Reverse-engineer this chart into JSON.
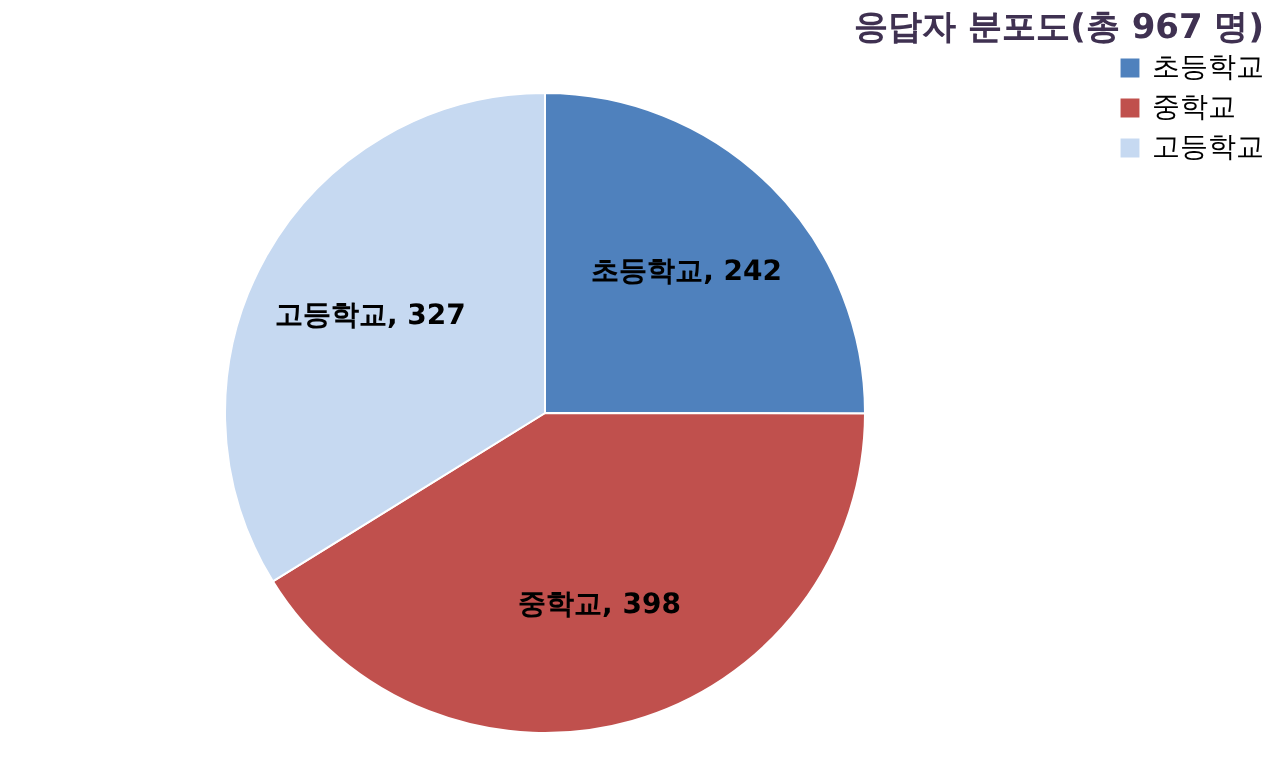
{
  "chart_data": {
    "type": "pie",
    "title": "응답자 분포도(총 967 명)",
    "categories": [
      "초등학교",
      "중학교",
      "고등학교"
    ],
    "values": [
      242,
      398,
      327
    ],
    "colors": [
      "#4f81bd",
      "#c0504d",
      "#c6d9f1"
    ],
    "value_labels": [
      "초등학교, 242",
      "중학교, 398",
      "고등학교, 327"
    ],
    "legend": "right"
  }
}
